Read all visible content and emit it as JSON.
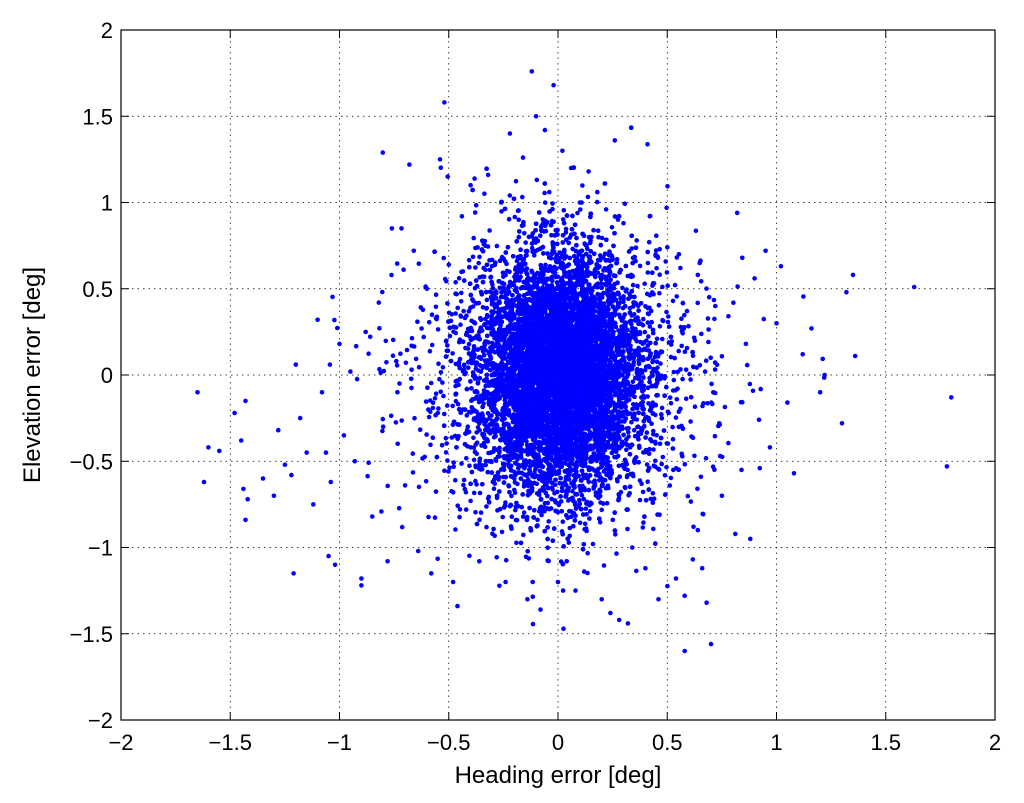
{
  "chart_data": {
    "type": "scatter",
    "title": "",
    "xlabel": "Heading error [deg]",
    "ylabel": "Elevation error [deg]",
    "xlim": [
      -2,
      2
    ],
    "ylim": [
      -2,
      2
    ],
    "x_ticks": [
      -2,
      -1.5,
      -1,
      -0.5,
      0,
      0.5,
      1,
      1.5,
      2
    ],
    "y_ticks": [
      -2,
      -1.5,
      -1,
      -0.5,
      0,
      0.5,
      1,
      1.5,
      2
    ],
    "x_tick_labels": [
      "−2",
      "−1.5",
      "−1",
      "−0.5",
      "0",
      "0.5",
      "1",
      "1.5",
      "2"
    ],
    "y_tick_labels": [
      "−2",
      "−1.5",
      "−1",
      "−0.5",
      "0",
      "0.5",
      "1",
      "1.5",
      "2"
    ],
    "grid": true,
    "grid_style": "dotted",
    "marker_color": "#0000ff",
    "series": [
      {
        "points": [
          [
            -1.65,
            -0.1
          ],
          [
            -1.6,
            -0.42
          ],
          [
            -1.62,
            -0.62
          ],
          [
            -1.55,
            -0.44
          ],
          [
            -1.48,
            -0.22
          ],
          [
            -1.45,
            -0.38
          ],
          [
            -1.43,
            -0.15
          ],
          [
            -1.44,
            -0.66
          ],
          [
            -1.42,
            -0.72
          ],
          [
            -1.43,
            -0.84
          ],
          [
            -1.35,
            -0.6
          ],
          [
            -1.3,
            -0.7
          ],
          [
            -1.28,
            -0.32
          ],
          [
            -1.25,
            -0.52
          ],
          [
            -1.22,
            -0.58
          ],
          [
            -1.21,
            -1.15
          ],
          [
            -1.2,
            0.06
          ],
          [
            -1.18,
            -0.25
          ],
          [
            -1.15,
            -0.45
          ],
          [
            -1.12,
            -0.75
          ],
          [
            -1.1,
            0.32
          ],
          [
            -1.08,
            -0.1
          ],
          [
            -1.05,
            -1.05
          ],
          [
            -1.04,
            -0.62
          ],
          [
            -1.02,
            -1.1
          ],
          [
            -1.0,
            0.18
          ],
          [
            -0.98,
            -0.35
          ],
          [
            -0.95,
            0.02
          ],
          [
            -0.93,
            -0.5
          ],
          [
            -0.9,
            -1.22
          ],
          [
            -0.9,
            -1.18
          ],
          [
            -0.88,
            0.25
          ],
          [
            -0.85,
            -0.82
          ],
          [
            -0.82,
            0.42
          ],
          [
            -0.8,
            -0.3
          ],
          [
            -0.78,
            -1.08
          ],
          [
            -0.76,
            0.85
          ],
          [
            -0.74,
            0.08
          ],
          [
            -0.7,
            -0.64
          ],
          [
            -0.68,
            1.22
          ],
          [
            -0.66,
            0.72
          ],
          [
            -0.64,
            -1.02
          ],
          [
            -0.6,
            0.5
          ],
          [
            -0.58,
            -1.15
          ],
          [
            -0.55,
            -0.22
          ],
          [
            -0.54,
            1.25
          ],
          [
            -0.52,
            1.58
          ],
          [
            -0.5,
            0.64
          ],
          [
            -0.48,
            -1.2
          ],
          [
            -0.46,
            -1.34
          ],
          [
            -0.44,
            0.92
          ],
          [
            -0.42,
            -0.78
          ],
          [
            -0.4,
            1.1
          ],
          [
            -0.4,
            -0.42
          ],
          [
            -0.38,
            0.3
          ],
          [
            -0.36,
            -1.08
          ],
          [
            -0.34,
            0.62
          ],
          [
            -0.32,
            1.16
          ],
          [
            -0.3,
            -0.92
          ],
          [
            -0.28,
            0.04
          ],
          [
            -0.26,
            1.0
          ],
          [
            -0.24,
            -1.2
          ],
          [
            -0.22,
            1.4
          ],
          [
            -0.2,
            -0.6
          ],
          [
            -0.18,
            0.9
          ],
          [
            -0.16,
            1.26
          ],
          [
            -0.14,
            -1.3
          ],
          [
            -0.12,
            1.76
          ],
          [
            -0.1,
            1.5
          ],
          [
            -0.08,
            -1.36
          ],
          [
            -0.06,
            1.42
          ],
          [
            -0.04,
            1.06
          ],
          [
            -0.02,
            1.68
          ],
          [
            0.0,
            -1.2
          ],
          [
            0.02,
            1.3
          ],
          [
            0.04,
            -1.08
          ],
          [
            0.06,
            1.2
          ],
          [
            0.08,
            -1.25
          ],
          [
            0.1,
            1.0
          ],
          [
            0.12,
            -1.14
          ],
          [
            0.14,
            1.18
          ],
          [
            0.16,
            -0.98
          ],
          [
            0.18,
            1.06
          ],
          [
            0.2,
            -1.3
          ],
          [
            0.22,
            0.96
          ],
          [
            0.24,
            -1.38
          ],
          [
            0.26,
            1.36
          ],
          [
            0.28,
            -1.42
          ],
          [
            0.3,
            0.88
          ],
          [
            0.32,
            -1.44
          ],
          [
            0.34,
            -1.0
          ],
          [
            0.36,
            0.78
          ],
          [
            0.4,
            -1.12
          ],
          [
            0.42,
            0.92
          ],
          [
            0.46,
            -1.3
          ],
          [
            0.5,
            0.74
          ],
          [
            0.54,
            -1.18
          ],
          [
            0.56,
            0.62
          ],
          [
            0.58,
            -1.28
          ],
          [
            0.58,
            -1.6
          ],
          [
            0.62,
            -0.88
          ],
          [
            0.64,
            0.58
          ],
          [
            0.66,
            -1.12
          ],
          [
            0.68,
            -1.32
          ],
          [
            0.7,
            -1.56
          ],
          [
            0.72,
            0.4
          ],
          [
            0.75,
            -0.7
          ],
          [
            0.78,
            0.34
          ],
          [
            0.82,
            0.94
          ],
          [
            0.84,
            -0.55
          ],
          [
            0.86,
            0.18
          ],
          [
            0.88,
            -0.95
          ],
          [
            0.9,
            0.56
          ],
          [
            0.92,
            -0.26
          ],
          [
            0.95,
            0.72
          ],
          [
            0.97,
            -0.42
          ],
          [
            1.0,
            0.3
          ],
          [
            1.02,
            0.63
          ],
          [
            1.05,
            -0.16
          ],
          [
            1.08,
            -0.57
          ],
          [
            1.12,
            0.12
          ],
          [
            1.16,
            0.27
          ],
          [
            1.2,
            -0.1
          ],
          [
            1.22,
            0.0
          ],
          [
            1.3,
            -0.28
          ],
          [
            1.32,
            0.48
          ],
          [
            1.35,
            0.58
          ],
          [
            1.36,
            0.11
          ],
          [
            1.63,
            0.51
          ],
          [
            1.78,
            -0.53
          ],
          [
            1.8,
            -0.13
          ]
        ],
        "generated_points": {
          "count": 11000,
          "x_mean": 0.01,
          "x_std": 0.17,
          "y_mean": 0.02,
          "y_std": 0.33
        },
        "generated_tail_points": {
          "count": 1800,
          "x_mean": 0.0,
          "x_std": 0.34,
          "y_mean": -0.05,
          "y_std": 0.42
        }
      }
    ]
  }
}
